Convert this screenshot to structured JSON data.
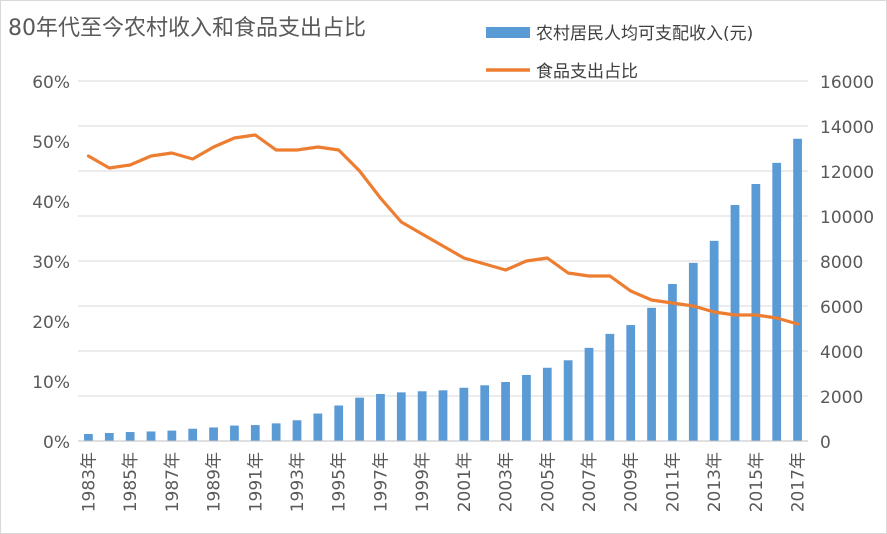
{
  "chart_data": {
    "type": "bar",
    "title": "80年代至今农村收入和食品支出占比",
    "categories": [
      "1983年",
      "1984年",
      "1985年",
      "1986年",
      "1987年",
      "1988年",
      "1989年",
      "1990年",
      "1991年",
      "1992年",
      "1993年",
      "1994年",
      "1995年",
      "1996年",
      "1997年",
      "1998年",
      "1999年",
      "2000年",
      "2001年",
      "2002年",
      "2003年",
      "2004年",
      "2005年",
      "2006年",
      "2007年",
      "2008年",
      "2009年",
      "2010年",
      "2011年",
      "2012年",
      "2013年",
      "2014年",
      "2015年",
      "2016年",
      "2017年"
    ],
    "x_tick_labels": [
      "1983年",
      "1985年",
      "1987年",
      "1989年",
      "1991年",
      "1993年",
      "1995年",
      "1997年",
      "1999年",
      "2001年",
      "2003年",
      "2005年",
      "2007年",
      "2009年",
      "2011年",
      "2013年",
      "2015年",
      "2017年"
    ],
    "series": [
      {
        "name": "农村居民人均可支配收入(元)",
        "type": "bar",
        "axis": "right",
        "color": "#5b9bd5",
        "values": [
          310,
          355,
          398,
          424,
          463,
          545,
          602,
          686,
          709,
          784,
          922,
          1221,
          1578,
          1926,
          2090,
          2162,
          2210,
          2253,
          2366,
          2476,
          2622,
          2936,
          3255,
          3587,
          4140,
          4761,
          5153,
          5919,
          6977,
          7917,
          8896,
          10489,
          11422,
          12363,
          13432
        ]
      },
      {
        "name": "食品支出占比",
        "type": "line",
        "axis": "left",
        "color": "#ed7d31",
        "values": [
          47.5,
          45.5,
          46.0,
          47.5,
          48.0,
          47.0,
          49.0,
          50.5,
          51.0,
          48.5,
          48.5,
          49.0,
          48.5,
          45.0,
          40.5,
          36.5,
          34.5,
          32.5,
          30.5,
          29.5,
          28.5,
          30.0,
          30.5,
          28.0,
          27.5,
          27.5,
          25.0,
          23.5,
          23.0,
          22.5,
          21.5,
          21.0,
          21.0,
          20.5,
          19.5
        ]
      }
    ],
    "y_left": {
      "ylim": [
        0,
        60
      ],
      "ticks": [
        "0%",
        "10%",
        "20%",
        "30%",
        "40%",
        "50%",
        "60%"
      ]
    },
    "y_right": {
      "ylim": [
        0,
        16000
      ],
      "ticks": [
        "0",
        "2000",
        "4000",
        "6000",
        "8000",
        "10000",
        "12000",
        "14000",
        "16000"
      ]
    },
    "grid": true,
    "legend_position": "top-right"
  }
}
